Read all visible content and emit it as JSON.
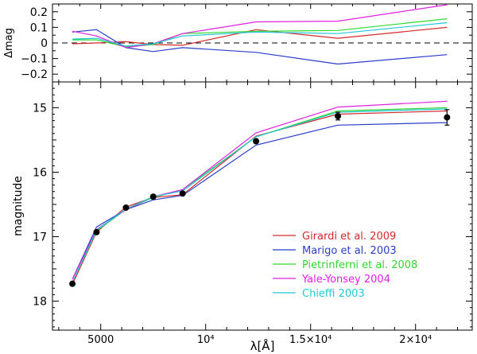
{
  "chart_data": [
    {
      "type": "line",
      "panel": "residuals",
      "ylabel": "Δmag",
      "xlim": [
        2700,
        22700
      ],
      "ylim": [
        -0.25,
        0.25
      ],
      "yticks": [
        -0.2,
        -0.1,
        0,
        0.1,
        0.2
      ],
      "ytick_labels": [
        "−0.2",
        "−0.1",
        "0",
        "0.1",
        "0.2"
      ],
      "zero_line": "dashed",
      "x": [
        3650,
        4800,
        6200,
        7500,
        8900,
        12400,
        16300,
        21500
      ],
      "series": [
        {
          "name": "Girardi et al. 2009",
          "color": "#d42a2a",
          "values": [
            -0.005,
            0.0,
            0.008,
            -0.01,
            -0.015,
            0.085,
            0.03,
            0.1
          ]
        },
        {
          "name": "Marigo et al. 2003",
          "color": "#2b3fc8",
          "values": [
            0.07,
            0.085,
            -0.03,
            -0.055,
            -0.03,
            -0.06,
            -0.135,
            -0.075
          ]
        },
        {
          "name": "Pietrinferni et al. 2008",
          "color": "#2fd82f",
          "values": [
            0.02,
            0.02,
            -0.025,
            -0.01,
            0.06,
            0.075,
            0.08,
            0.155
          ]
        },
        {
          "name": "Yale-Yonsey 2004",
          "color": "#e020e0",
          "values": [
            0.075,
            0.045,
            -0.03,
            -0.005,
            0.06,
            0.135,
            0.14,
            0.245
          ]
        },
        {
          "name": "Chieffi 2003",
          "color": "#22c8d8",
          "values": [
            0.025,
            0.03,
            -0.02,
            -0.005,
            0.045,
            0.07,
            0.06,
            0.13
          ]
        }
      ]
    },
    {
      "type": "line",
      "panel": "magnitudes",
      "ylabel": "magnitude",
      "xlabel": "λ[Å]",
      "xlim": [
        2700,
        22700
      ],
      "ylim": [
        18.45,
        14.6
      ],
      "xticks": [
        5000,
        10000,
        15000,
        20000
      ],
      "xtick_labels": [
        "5000",
        "10⁴",
        "1.5×10⁴",
        "2×10⁴"
      ],
      "yticks": [
        15,
        16,
        17,
        18
      ],
      "ytick_labels": [
        "15",
        "16",
        "17",
        "18"
      ],
      "x": [
        3650,
        4800,
        6200,
        7500,
        8900,
        12400,
        16300,
        21500
      ],
      "observed": {
        "values": [
          17.73,
          16.93,
          16.55,
          16.38,
          16.33,
          15.52,
          15.13,
          15.15
        ],
        "errors": [
          0.02,
          0.02,
          0.02,
          0.02,
          0.02,
          0.03,
          0.06,
          0.12
        ]
      },
      "series": [
        {
          "name": "Girardi et al. 2009",
          "color": "#d42a2a",
          "values": [
            17.74,
            16.93,
            16.54,
            16.39,
            16.35,
            15.44,
            15.1,
            15.05
          ]
        },
        {
          "name": "Marigo et al. 2003",
          "color": "#2b3fc8",
          "values": [
            17.66,
            16.85,
            16.58,
            16.43,
            16.36,
            15.58,
            15.27,
            15.23
          ]
        },
        {
          "name": "Pietrinferni et al. 2008",
          "color": "#2fd82f",
          "values": [
            17.71,
            16.91,
            16.58,
            16.39,
            16.27,
            15.45,
            15.05,
            15.0
          ]
        },
        {
          "name": "Yale-Yonsey 2004",
          "color": "#e020e0",
          "values": [
            17.66,
            16.89,
            16.58,
            16.38,
            16.27,
            15.39,
            14.99,
            14.9
          ]
        },
        {
          "name": "Chieffi 2003",
          "color": "#22c8d8",
          "values": [
            17.71,
            16.9,
            16.57,
            16.38,
            16.29,
            15.45,
            15.07,
            15.02
          ]
        }
      ],
      "legend_position": "lower-right"
    }
  ]
}
